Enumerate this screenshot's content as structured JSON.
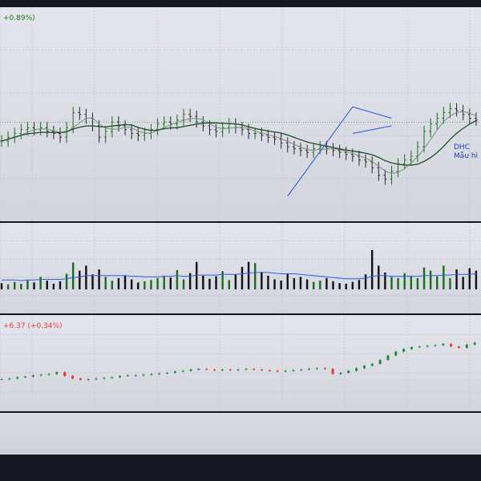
{
  "panes": {
    "price": {
      "legend": "+0.89%)",
      "annotation_ticker": "DHC",
      "annotation_pattern": "Mẫu hì"
    },
    "index": {
      "legend": "+6.37 (+0.34%)"
    }
  },
  "colors": {
    "background": "#131722",
    "pane": "#dcdee5",
    "grid": "#b9bcc6",
    "price_bar_up": "#1e6e1e",
    "price_bar_down": "#2a2a2a",
    "ma_fast": "#7d8f7d",
    "ma_slow": "#1f4d2a",
    "reference_line": "#2e8b2e",
    "trendline": "#2b55d9",
    "volume_up": "#1d6b1d",
    "volume_down": "#111111",
    "volume_ma": "#2f5fe0",
    "index_up": "#1f8a3a",
    "index_down": "#e53935"
  },
  "chart_data": [
    {
      "type": "ohlc",
      "name": "price",
      "grid": true,
      "ylim": [
        0,
        100
      ],
      "reference_line": 48,
      "trendlines": [
        {
          "from": [
            44,
            9
          ],
          "to": [
            54,
            56
          ]
        },
        {
          "from": [
            54,
            56
          ],
          "to": [
            60,
            50
          ]
        },
        {
          "from": [
            54,
            42
          ],
          "to": [
            60,
            46
          ]
        }
      ],
      "close": [
        38,
        40,
        42,
        44,
        45,
        44,
        45,
        43,
        42,
        40,
        45,
        53,
        52,
        50,
        46,
        40,
        43,
        48,
        46,
        44,
        42,
        41,
        42,
        44,
        47,
        48,
        47,
        49,
        52,
        51,
        48,
        46,
        44,
        43,
        45,
        47,
        45,
        44,
        42,
        42,
        41,
        40,
        39,
        37,
        35,
        34,
        33,
        32,
        34,
        35,
        34,
        33,
        32,
        31,
        30,
        28,
        27,
        24,
        20,
        18,
        22,
        26,
        28,
        30,
        35,
        43,
        47,
        50,
        53,
        55,
        54,
        52,
        50,
        49
      ]
    },
    {
      "type": "bar",
      "name": "volume",
      "grid": true,
      "ylim": [
        0,
        100
      ],
      "values": [
        10,
        8,
        12,
        9,
        15,
        11,
        20,
        14,
        9,
        13,
        25,
        43,
        30,
        38,
        24,
        32,
        20,
        14,
        18,
        22,
        16,
        11,
        13,
        15,
        18,
        22,
        19,
        31,
        16,
        26,
        44,
        22,
        17,
        21,
        29,
        15,
        24,
        36,
        44,
        42,
        28,
        22,
        16,
        14,
        25,
        18,
        20,
        16,
        12,
        14,
        18,
        13,
        10,
        9,
        12,
        15,
        24,
        63,
        38,
        27,
        20,
        18,
        26,
        22,
        18,
        35,
        30,
        21,
        38,
        18,
        32,
        20,
        34,
        30
      ],
      "ma": [
        15,
        15,
        15,
        14,
        15,
        15,
        16,
        16,
        16,
        16,
        17,
        19,
        20,
        22,
        22,
        22,
        22,
        22,
        22,
        22,
        21,
        21,
        20,
        20,
        20,
        21,
        21,
        22,
        21,
        21,
        23,
        23,
        23,
        23,
        24,
        24,
        24,
        25,
        26,
        27,
        27,
        27,
        26,
        25,
        25,
        25,
        24,
        23,
        22,
        21,
        20,
        19,
        18,
        17,
        17,
        17,
        18,
        21,
        22,
        22,
        21,
        21,
        21,
        21,
        21,
        22,
        22,
        22,
        23,
        23,
        24,
        24,
        24,
        25
      ]
    },
    {
      "type": "candlestick",
      "name": "index",
      "grid": true,
      "ylim": [
        0,
        100
      ],
      "close": [
        25,
        26,
        28,
        29,
        31,
        32,
        33,
        36,
        30,
        26,
        24,
        25,
        26,
        27,
        28,
        30,
        31,
        31,
        32,
        33,
        34,
        35,
        37,
        38,
        40,
        41,
        40,
        39,
        40,
        39,
        40,
        41,
        40,
        39,
        38,
        37,
        38,
        39,
        40,
        41,
        42,
        41,
        33,
        35,
        38,
        42,
        46,
        49,
        55,
        62,
        68,
        72,
        75,
        76,
        77,
        78,
        80,
        76,
        74,
        79,
        82
      ]
    }
  ]
}
